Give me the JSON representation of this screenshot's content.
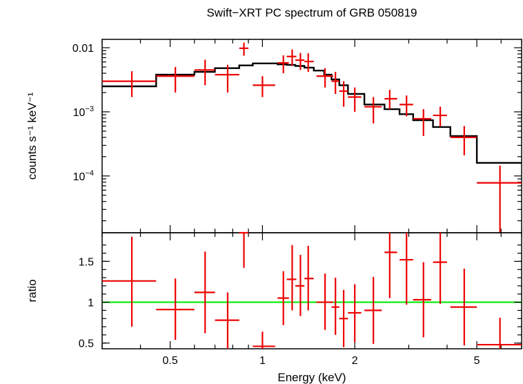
{
  "chart_data": [
    {
      "type": "line",
      "panel": "spectrum",
      "title": "Swift−XRT PC spectrum of GRB 050819",
      "ylabel": "counts s⁻¹ keV⁻¹",
      "xlabel": "",
      "xscale": "log",
      "yscale": "log",
      "xlim": [
        0.3,
        7.0
      ],
      "ylim": [
        1.3e-05,
        0.0135
      ],
      "yticks": [
        {
          "value": 0.01,
          "label": "0.01",
          "sup": ""
        },
        {
          "value": 0.001,
          "label": "10",
          "sup": "−3"
        },
        {
          "value": 0.0001,
          "label": "10",
          "sup": "−4"
        }
      ],
      "series": [
        {
          "color": "#ee0000",
          "style": "errorbar",
          "points": [
            {
              "x": 0.375,
              "xlo": 0.3,
              "xhi": 0.45,
              "y": 0.003,
              "ylo": 0.0017,
              "yhi": 0.0043
            },
            {
              "x": 0.52,
              "xlo": 0.45,
              "xhi": 0.6,
              "y": 0.0036,
              "ylo": 0.002,
              "yhi": 0.005
            },
            {
              "x": 0.65,
              "xlo": 0.6,
              "xhi": 0.7,
              "y": 0.0045,
              "ylo": 0.0026,
              "yhi": 0.0065
            },
            {
              "x": 0.77,
              "xlo": 0.7,
              "xhi": 0.84,
              "y": 0.0038,
              "ylo": 0.002,
              "yhi": 0.0054
            },
            {
              "x": 0.87,
              "xlo": 0.84,
              "xhi": 0.9,
              "y": 0.0098,
              "ylo": 0.0075,
              "yhi": 0.012
            },
            {
              "x": 1.0,
              "xlo": 0.93,
              "xhi": 1.1,
              "y": 0.0026,
              "ylo": 0.0017,
              "yhi": 0.0036
            },
            {
              "x": 1.17,
              "xlo": 1.12,
              "xhi": 1.22,
              "y": 0.0058,
              "ylo": 0.004,
              "yhi": 0.0076
            },
            {
              "x": 1.25,
              "xlo": 1.2,
              "xhi": 1.29,
              "y": 0.0073,
              "ylo": 0.0052,
              "yhi": 0.0094
            },
            {
              "x": 1.33,
              "xlo": 1.28,
              "xhi": 1.37,
              "y": 0.0064,
              "ylo": 0.0045,
              "yhi": 0.0083
            },
            {
              "x": 1.41,
              "xlo": 1.37,
              "xhi": 1.47,
              "y": 0.0061,
              "ylo": 0.0042,
              "yhi": 0.0082
            },
            {
              "x": 1.6,
              "xlo": 1.5,
              "xhi": 1.7,
              "y": 0.0036,
              "ylo": 0.0024,
              "yhi": 0.0048
            },
            {
              "x": 1.73,
              "xlo": 1.68,
              "xhi": 1.78,
              "y": 0.003,
              "ylo": 0.0019,
              "yhi": 0.0042
            },
            {
              "x": 1.84,
              "xlo": 1.78,
              "xhi": 1.9,
              "y": 0.0021,
              "ylo": 0.0012,
              "yhi": 0.003
            },
            {
              "x": 2.0,
              "xlo": 1.9,
              "xhi": 2.1,
              "y": 0.0017,
              "ylo": 0.001,
              "yhi": 0.0024
            },
            {
              "x": 2.3,
              "xlo": 2.15,
              "xhi": 2.45,
              "y": 0.0012,
              "ylo": 0.00066,
              "yhi": 0.0017
            },
            {
              "x": 2.6,
              "xlo": 2.5,
              "xhi": 2.75,
              "y": 0.0016,
              "ylo": 0.0011,
              "yhi": 0.0022
            },
            {
              "x": 2.95,
              "xlo": 2.8,
              "xhi": 3.1,
              "y": 0.0013,
              "ylo": 0.00085,
              "yhi": 0.0018
            },
            {
              "x": 3.35,
              "xlo": 3.1,
              "xhi": 3.55,
              "y": 0.00078,
              "ylo": 0.00042,
              "yhi": 0.0011
            },
            {
              "x": 3.8,
              "xlo": 3.6,
              "xhi": 4.0,
              "y": 0.00088,
              "ylo": 0.00059,
              "yhi": 0.0012
            },
            {
              "x": 4.55,
              "xlo": 4.1,
              "xhi": 5.0,
              "y": 0.0004,
              "ylo": 0.00021,
              "yhi": 0.0006
            },
            {
              "x": 5.95,
              "xlo": 5.0,
              "xhi": 7.0,
              "y": 7.8e-05,
              "ylo": 1.3e-05,
              "yhi": 0.000145
            }
          ]
        },
        {
          "color": "#000000",
          "style": "step",
          "bins": [
            {
              "x0": 0.3,
              "x1": 0.45,
              "y": 0.0025
            },
            {
              "x0": 0.45,
              "x1": 0.6,
              "y": 0.0038
            },
            {
              "x0": 0.6,
              "x1": 0.7,
              "y": 0.0042
            },
            {
              "x0": 0.7,
              "x1": 0.84,
              "y": 0.0048
            },
            {
              "x0": 0.84,
              "x1": 0.93,
              "y": 0.0053
            },
            {
              "x0": 0.93,
              "x1": 1.12,
              "y": 0.0057
            },
            {
              "x0": 1.12,
              "x1": 1.2,
              "y": 0.0055
            },
            {
              "x0": 1.2,
              "x1": 1.28,
              "y": 0.0054
            },
            {
              "x0": 1.28,
              "x1": 1.37,
              "y": 0.0052
            },
            {
              "x0": 1.37,
              "x1": 1.47,
              "y": 0.0049
            },
            {
              "x0": 1.47,
              "x1": 1.59,
              "y": 0.0044
            },
            {
              "x0": 1.59,
              "x1": 1.68,
              "y": 0.0038
            },
            {
              "x0": 1.68,
              "x1": 1.78,
              "y": 0.0032
            },
            {
              "x0": 1.78,
              "x1": 1.9,
              "y": 0.0026
            },
            {
              "x0": 1.9,
              "x1": 2.15,
              "y": 0.0019
            },
            {
              "x0": 2.15,
              "x1": 2.5,
              "y": 0.0013
            },
            {
              "x0": 2.5,
              "x1": 2.8,
              "y": 0.0011
            },
            {
              "x0": 2.8,
              "x1": 3.1,
              "y": 0.00092
            },
            {
              "x0": 3.1,
              "x1": 3.6,
              "y": 0.00074
            },
            {
              "x0": 3.6,
              "x1": 4.1,
              "y": 0.00058
            },
            {
              "x0": 4.1,
              "x1": 5.0,
              "y": 0.00042
            },
            {
              "x0": 5.0,
              "x1": 7.0,
              "y": 0.00016
            }
          ]
        }
      ]
    },
    {
      "type": "scatter",
      "panel": "ratio",
      "ylabel": "ratio",
      "xlabel": "Energy (keV)",
      "xscale": "log",
      "xlim": [
        0.3,
        7.0
      ],
      "ylim": [
        0.43,
        1.85
      ],
      "xticks": [
        {
          "value": 0.5,
          "label": "0.5"
        },
        {
          "value": 1,
          "label": "1"
        },
        {
          "value": 2,
          "label": "2"
        },
        {
          "value": 5,
          "label": "5"
        }
      ],
      "yticks": [
        {
          "value": 0.5,
          "label": "0.5"
        },
        {
          "value": 1,
          "label": "1"
        },
        {
          "value": 1.5,
          "label": "1.5"
        }
      ],
      "reference_line": {
        "y": 1,
        "color": "#00ee00"
      },
      "series": [
        {
          "color": "#ee0000",
          "style": "errorbar",
          "points": [
            {
              "x": 0.375,
              "xlo": 0.3,
              "xhi": 0.45,
              "y": 1.26,
              "ylo": 0.7,
              "yhi": 1.8
            },
            {
              "x": 0.52,
              "xlo": 0.45,
              "xhi": 0.6,
              "y": 0.91,
              "ylo": 0.54,
              "yhi": 1.29
            },
            {
              "x": 0.65,
              "xlo": 0.6,
              "xhi": 0.7,
              "y": 1.12,
              "ylo": 0.62,
              "yhi": 1.62
            },
            {
              "x": 0.77,
              "xlo": 0.7,
              "xhi": 0.84,
              "y": 0.78,
              "ylo": 0.43,
              "yhi": 1.12
            },
            {
              "x": 0.87,
              "xlo": 0.84,
              "xhi": 0.9,
              "y": 1.85,
              "ylo": 1.42,
              "yhi": 1.85
            },
            {
              "x": 1.0,
              "xlo": 0.93,
              "xhi": 1.1,
              "y": 0.46,
              "ylo": 0.43,
              "yhi": 0.64
            },
            {
              "x": 1.17,
              "xlo": 1.12,
              "xhi": 1.22,
              "y": 1.05,
              "ylo": 0.72,
              "yhi": 1.38
            },
            {
              "x": 1.25,
              "xlo": 1.2,
              "xhi": 1.29,
              "y": 1.28,
              "ylo": 0.9,
              "yhi": 1.7
            },
            {
              "x": 1.33,
              "xlo": 1.28,
              "xhi": 1.37,
              "y": 1.2,
              "ylo": 0.83,
              "yhi": 1.58
            },
            {
              "x": 1.41,
              "xlo": 1.37,
              "xhi": 1.47,
              "y": 1.29,
              "ylo": 0.9,
              "yhi": 1.69
            },
            {
              "x": 1.6,
              "xlo": 1.5,
              "xhi": 1.7,
              "y": 1.0,
              "ylo": 0.66,
              "yhi": 1.35
            },
            {
              "x": 1.73,
              "xlo": 1.68,
              "xhi": 1.78,
              "y": 0.94,
              "ylo": 0.6,
              "yhi": 1.3
            },
            {
              "x": 1.84,
              "xlo": 1.78,
              "xhi": 1.9,
              "y": 0.8,
              "ylo": 0.45,
              "yhi": 1.15
            },
            {
              "x": 2.0,
              "xlo": 1.9,
              "xhi": 2.1,
              "y": 0.87,
              "ylo": 0.51,
              "yhi": 1.22
            },
            {
              "x": 2.3,
              "xlo": 2.15,
              "xhi": 2.45,
              "y": 0.9,
              "ylo": 0.49,
              "yhi": 1.31
            },
            {
              "x": 2.6,
              "xlo": 2.5,
              "xhi": 2.75,
              "y": 1.61,
              "ylo": 1.05,
              "yhi": 1.85
            },
            {
              "x": 2.95,
              "xlo": 2.8,
              "xhi": 3.1,
              "y": 1.52,
              "ylo": 0.97,
              "yhi": 1.85
            },
            {
              "x": 3.35,
              "xlo": 3.1,
              "xhi": 3.55,
              "y": 1.03,
              "ylo": 0.57,
              "yhi": 1.49
            },
            {
              "x": 3.8,
              "xlo": 3.6,
              "xhi": 4.0,
              "y": 1.49,
              "ylo": 0.98,
              "yhi": 1.85
            },
            {
              "x": 4.55,
              "xlo": 4.1,
              "xhi": 5.0,
              "y": 0.94,
              "ylo": 0.47,
              "yhi": 1.41
            },
            {
              "x": 5.95,
              "xlo": 5.0,
              "xhi": 7.0,
              "y": 0.48,
              "ylo": 0.43,
              "yhi": 0.81
            }
          ]
        }
      ]
    }
  ]
}
